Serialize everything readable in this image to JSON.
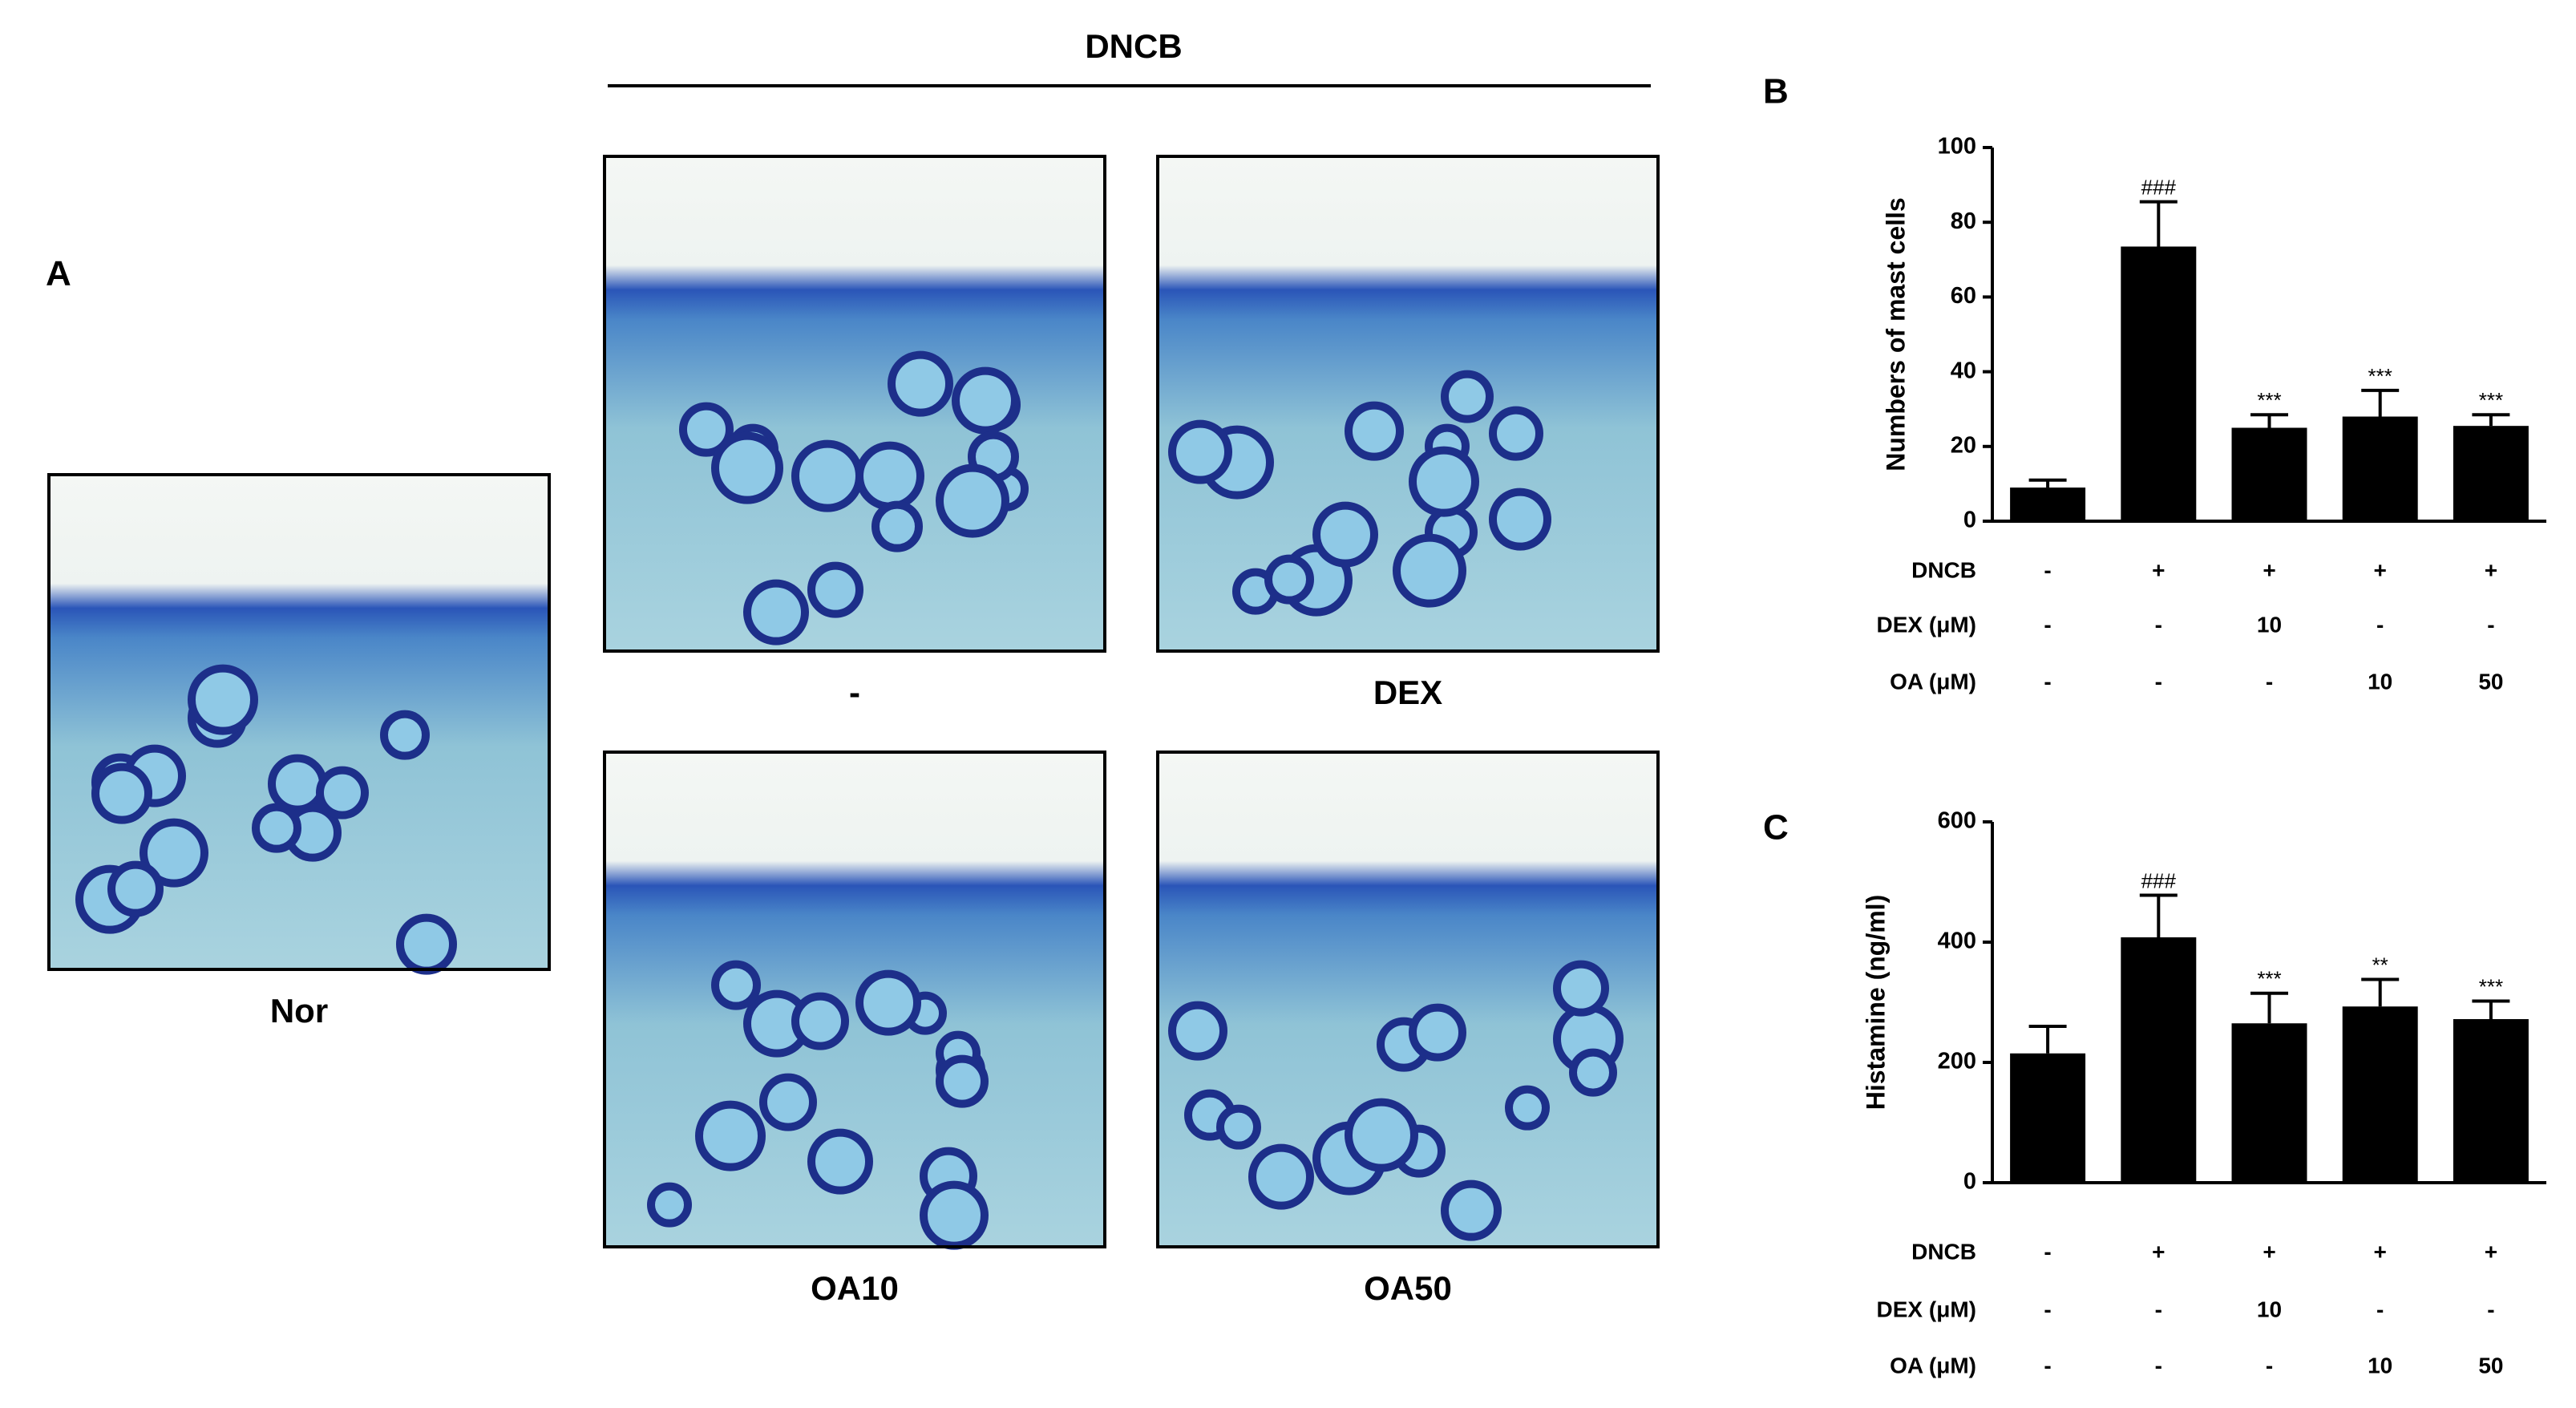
{
  "panel_a": {
    "label": "A",
    "group": "DNCB",
    "images": [
      {
        "caption": "Nor"
      },
      {
        "caption": "-"
      },
      {
        "caption": "DEX"
      },
      {
        "caption": "OA10"
      },
      {
        "caption": "OA50"
      }
    ]
  },
  "chart_data": [
    {
      "type": "bar",
      "panel_label": "B",
      "ylabel": "Numbers of mast cells",
      "categories": [
        null,
        null,
        null,
        null,
        null
      ],
      "values": [
        9,
        73.5,
        25,
        28,
        25.5
      ],
      "errors": [
        2,
        12,
        3.5,
        7,
        3
      ],
      "annotations": [
        null,
        "###",
        "***",
        "***",
        "***"
      ],
      "color": "#000000",
      "ylim": [
        0,
        100
      ],
      "yticks": [
        0,
        20,
        40,
        60,
        80,
        100
      ],
      "treatments": [
        {
          "name": "DNCB",
          "values": [
            "-",
            "+",
            "+",
            "+",
            "+"
          ]
        },
        {
          "name": "DEX (μM)",
          "values": [
            "-",
            "-",
            "10",
            "-",
            "-"
          ]
        },
        {
          "name": "OA (μM)",
          "values": [
            "-",
            "-",
            "-",
            "10",
            "50"
          ]
        }
      ]
    },
    {
      "type": "bar",
      "panel_label": "C",
      "ylabel": "Histamine (ng/ml)",
      "categories": [
        null,
        null,
        null,
        null,
        null
      ],
      "values": [
        215,
        408,
        265,
        293,
        272
      ],
      "errors": [
        45,
        70,
        50,
        45,
        30
      ],
      "annotations": [
        null,
        "###",
        "***",
        "**",
        "***"
      ],
      "color": "#000000",
      "ylim": [
        0,
        600
      ],
      "yticks": [
        0,
        200,
        400,
        600
      ],
      "treatments": [
        {
          "name": "DNCB",
          "values": [
            "-",
            "+",
            "+",
            "+",
            "+"
          ]
        },
        {
          "name": "DEX (μM)",
          "values": [
            "-",
            "-",
            "10",
            "-",
            "-"
          ]
        },
        {
          "name": "OA (μM)",
          "values": [
            "-",
            "-",
            "-",
            "10",
            "50"
          ]
        }
      ]
    }
  ]
}
